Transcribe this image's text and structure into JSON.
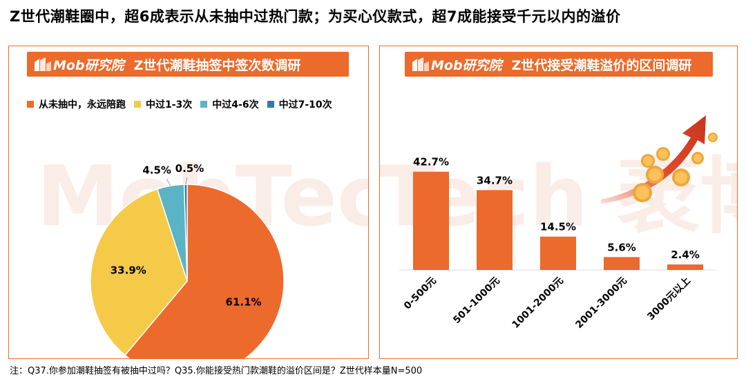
{
  "headline": "Z世代潮鞋圈中，超6成表示从未抽中过热门款；为买心仪款式，超7成能接受千元以内的溢价",
  "footnote": "注：Q37.你参加潮鞋抽签有被抽中过吗？Q35.你能接受热门款潮鞋的溢价区间是？Z世代样本量N=500",
  "watermark": "MobTech 袤博",
  "logo_text": "Mob研究院",
  "colors": {
    "accent": "#ec6a2b",
    "yellow": "#f5ca49",
    "teal": "#5bb3c6",
    "navy": "#3a78a8"
  },
  "chart_data": [
    {
      "type": "pie",
      "title": "Z世代潮鞋抽签中签次数调研",
      "categories": [
        "从未抽中，永远陪跑",
        "中过1-3次",
        "中过4-6次",
        "中过7-10次"
      ],
      "values": [
        61.1,
        33.9,
        4.5,
        0.5
      ],
      "labels": [
        "61.1%",
        "33.9%",
        "4.5%",
        "0.5%"
      ],
      "colors": [
        "#ec6a2b",
        "#f5ca49",
        "#5bb3c6",
        "#3a78a8"
      ],
      "legend": "top-left"
    },
    {
      "type": "bar",
      "title": "Z世代接受潮鞋溢价的区间调研",
      "categories": [
        "0-500元",
        "501-1000元",
        "1001-2000元",
        "2001-3000元",
        "3000元以上"
      ],
      "values": [
        42.7,
        34.7,
        14.5,
        5.6,
        2.4
      ],
      "labels": [
        "42.7%",
        "34.7%",
        "14.5%",
        "5.6%",
        "2.4%"
      ],
      "color": "#ec6a2b",
      "ylim": [
        0,
        45
      ],
      "grid": false
    }
  ]
}
